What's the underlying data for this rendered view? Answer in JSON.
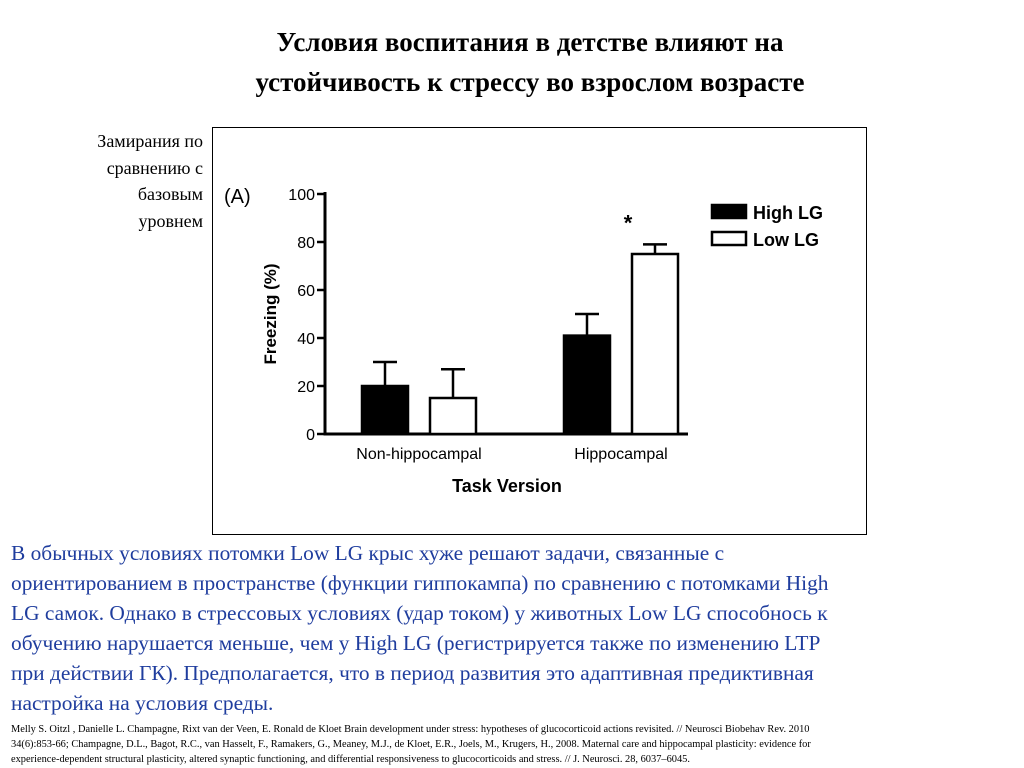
{
  "header": {
    "title_line1": "Условия воспитания в детстве влияют на",
    "title_line2": "устойчивость к стрессу во взрослом возрасте"
  },
  "side_label": {
    "line1": "Замирания по",
    "line2": "сравнению с",
    "line3": "базовым",
    "line4": "уровнем"
  },
  "chart_data": {
    "type": "bar",
    "panel_label": "(A)",
    "categories": [
      "Non-hippocampal",
      "Hippocampal"
    ],
    "series": [
      {
        "name": "High LG",
        "values": [
          20,
          41
        ],
        "errors": [
          10,
          9
        ],
        "fill": "#000000"
      },
      {
        "name": "Low LG",
        "values": [
          15,
          75
        ],
        "errors": [
          12,
          4
        ],
        "fill": "#ffffff"
      }
    ],
    "xlabel": "Task Version",
    "ylabel": "Freezing (%)",
    "ylim": [
      0,
      100
    ],
    "yticks": [
      0,
      20,
      40,
      60,
      80,
      100
    ],
    "annotations": [
      {
        "text": "*",
        "category": "Hippocampal",
        "series": "Low LG"
      }
    ],
    "legend_position": "top-right",
    "grid": false
  },
  "body": {
    "line1": "В обычных условиях потомки Low LG крыс хуже решают задачи, связанные с",
    "line2": "ориентированием в пространстве (функции гиппокампа) по сравнению с потомками High",
    "line3": "LG самок. Однако в стрессовых условиях (удар током) у животных  Low LG  способнось к",
    "line4": "обучению нарушается меньше, чем у High LG (регистрируется также по изменению LTP",
    "line5": "при действии  ГК). Предполагается, что в период развития это адаптивная предиктивная",
    "line6": "настройка на условия среды."
  },
  "references": {
    "line1": "Melly S. Oitzl , Danielle L. Champagne, Rixt van der Veen, E. Ronald de Kloet  Brain development under stress: hypotheses of glucocorticoid actions revisited. // Neurosci Biobehav Rev. 2010",
    "line2": "34(6):853-66;  Champagne, D.L., Bagot, R.C., van Hasselt, F., Ramakers, G., Meaney, M.J., de Kloet, E.R., Joels, M., Krugers, H., 2008. Maternal care and hippocampal plasticity: evidence for",
    "line3": "experience-dependent structural plasticity, altered synaptic functioning, and differential responsiveness to glucocorticoids and stress. // J. Neurosci. 28, 6037–6045."
  }
}
